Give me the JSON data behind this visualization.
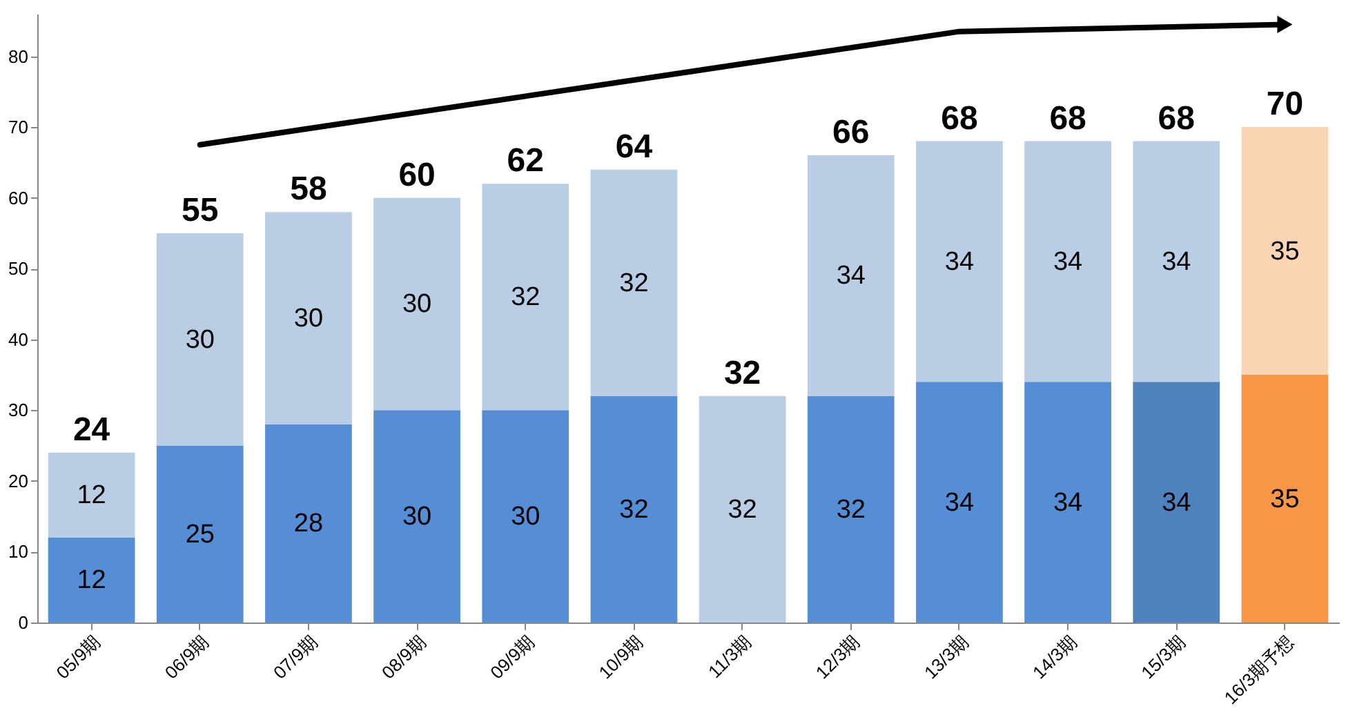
{
  "chart_data": {
    "type": "bar",
    "stacked": true,
    "categories": [
      "05/9期",
      "06/9期",
      "07/9期",
      "08/9期",
      "09/9期",
      "10/9期",
      "11/3期",
      "12/3期",
      "13/3期",
      "14/3期",
      "15/3期",
      "16/3期予想"
    ],
    "series": [
      {
        "colors": [
          "#558ed5",
          "#558ed5",
          "#558ed5",
          "#558ed5",
          "#558ed5",
          "#558ed5",
          "#558ed5",
          "#558ed5",
          "#558ed5",
          "#558ed5",
          "#4f81bd",
          "#f79646"
        ],
        "values": [
          12,
          25,
          28,
          30,
          30,
          32,
          null,
          32,
          34,
          34,
          34,
          35
        ]
      },
      {
        "colors": [
          "#b9cde5",
          "#b9cde5",
          "#b9cde5",
          "#b9cde5",
          "#b9cde5",
          "#b9cde5",
          "#b9cde5",
          "#b9cde5",
          "#b9cde5",
          "#b9cde5",
          "#b9cde5",
          "#fcd5b5"
        ],
        "values": [
          12,
          30,
          30,
          30,
          32,
          32,
          32,
          34,
          34,
          34,
          34,
          35
        ]
      },
      {
        "type": "line",
        "color": "#000000",
        "values": [
          null,
          67.5,
          null,
          null,
          null,
          null,
          null,
          null,
          83.5,
          null,
          null,
          84.5
        ],
        "value_labels": [
          null,
          null,
          null,
          null,
          null,
          null,
          null,
          null,
          null,
          null,
          null,
          null
        ]
      }
    ],
    "totals": [
      "24",
      "55",
      "58",
      "60",
      "62",
      "64",
      "32",
      "66",
      "68",
      "68",
      "68",
      "70"
    ],
    "data_labels": true,
    "ylim": [
      0,
      86
    ],
    "yticks": [
      0,
      10,
      20,
      30,
      40,
      50,
      60,
      70,
      80
    ],
    "grid": false
  }
}
